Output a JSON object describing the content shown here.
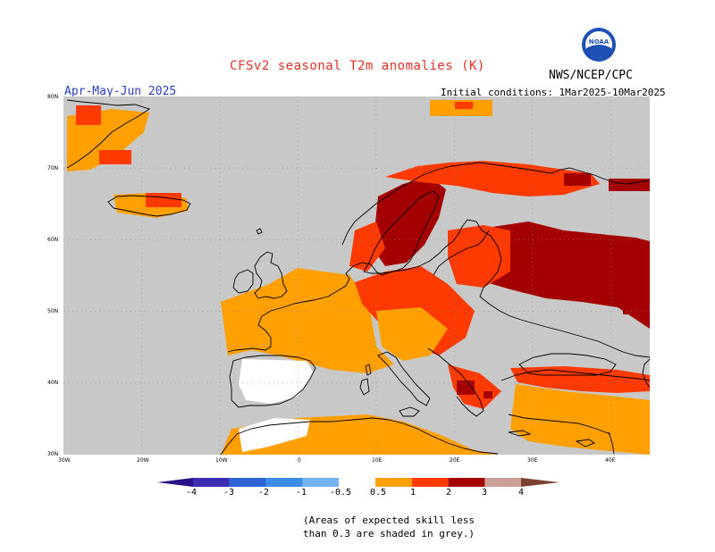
{
  "header": {
    "title": "CFSv2 seasonal T2m anomalies (K)",
    "agency": "NWS/NCEP/CPC",
    "logo_text": "NOAA",
    "period": "Apr-May-Jun 2025",
    "initial_conditions": "Initial conditions: 1Mar2025-10Mar2025"
  },
  "map": {
    "lat_labels": [
      "80N",
      "70N",
      "60N",
      "50N",
      "40N",
      "30N"
    ],
    "lon_labels": [
      "30W",
      "20W",
      "10W",
      "0",
      "10E",
      "20E",
      "30E",
      "40E"
    ],
    "lon_range": [
      -30,
      45
    ],
    "lat_range": [
      30,
      80
    ],
    "background_color": "#c8c8c8",
    "coastline_color": "#000000"
  },
  "legend": {
    "tick_labels": [
      "-4",
      "-3",
      "-2",
      "-1",
      "-0.5",
      "0.5",
      "1",
      "2",
      "3",
      "4"
    ],
    "bins": [
      {
        "color": "#3b2fb0"
      },
      {
        "color": "#2f62d2"
      },
      {
        "color": "#3f8ce8"
      },
      {
        "color": "#74b2f2"
      },
      {
        "color": "#ffffff"
      },
      {
        "color": "#ffa000"
      },
      {
        "color": "#ff3a00"
      },
      {
        "color": "#a50000"
      },
      {
        "color": "#c8a096"
      }
    ],
    "left_arrow_color": "#2a0f86",
    "right_arrow_color": "#7a4030"
  },
  "footnote": {
    "line1": "(Areas of expected skill less",
    "line2": "than 0.3 are shaded in grey.)"
  },
  "colors": {
    "orange": "#ffa000",
    "red": "#ff3a00",
    "darkred": "#a50000",
    "white": "#ffffff",
    "grey": "#c8c8c8"
  }
}
